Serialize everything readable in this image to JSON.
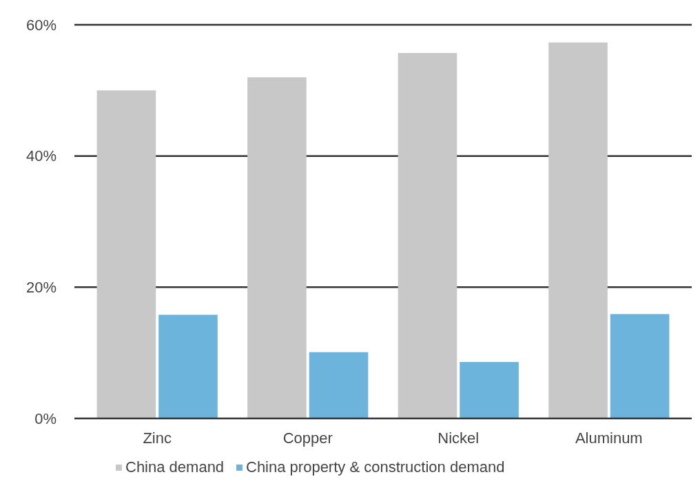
{
  "chart_data": {
    "type": "bar",
    "categories": [
      "Zinc",
      "Copper",
      "Nickel",
      "Aluminum"
    ],
    "series": [
      {
        "name": "China demand",
        "color": "#c8c8c8",
        "values": [
          50,
          52,
          55.7,
          57.3
        ]
      },
      {
        "name": "China property & construction demand",
        "color": "#6cb4dc",
        "values": [
          15.8,
          10.1,
          8.6,
          15.9
        ]
      }
    ],
    "ylim": [
      0,
      60
    ],
    "yticks": [
      {
        "value": 0,
        "label": "0%"
      },
      {
        "value": 20,
        "label": "20%"
      },
      {
        "value": 40,
        "label": "40%"
      },
      {
        "value": 60,
        "label": "60%"
      }
    ],
    "grid": "y",
    "legend": "bottom"
  }
}
